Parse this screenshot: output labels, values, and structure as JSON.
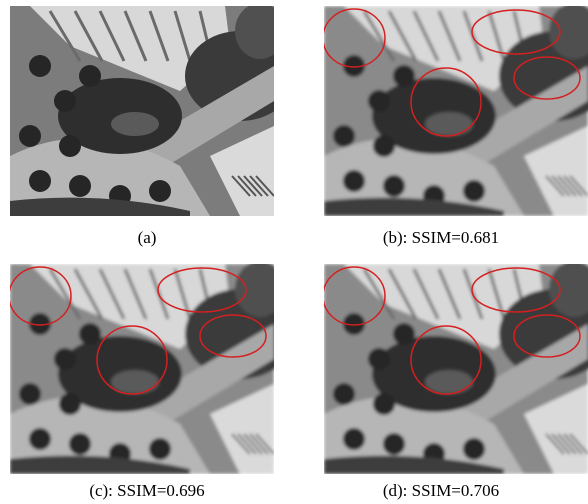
{
  "figure": {
    "panels": [
      {
        "id": "a",
        "caption": "(a)",
        "style": "sharp",
        "circles": false
      },
      {
        "id": "b",
        "caption": "(b): SSIM=0.681",
        "style": "blur",
        "circles": true
      },
      {
        "id": "c",
        "caption": "(c): SSIM=0.696",
        "style": "blur",
        "circles": true
      },
      {
        "id": "d",
        "caption": "(d): SSIM=0.706",
        "style": "blur",
        "circles": true
      }
    ],
    "highlight_color": "#d42020"
  }
}
